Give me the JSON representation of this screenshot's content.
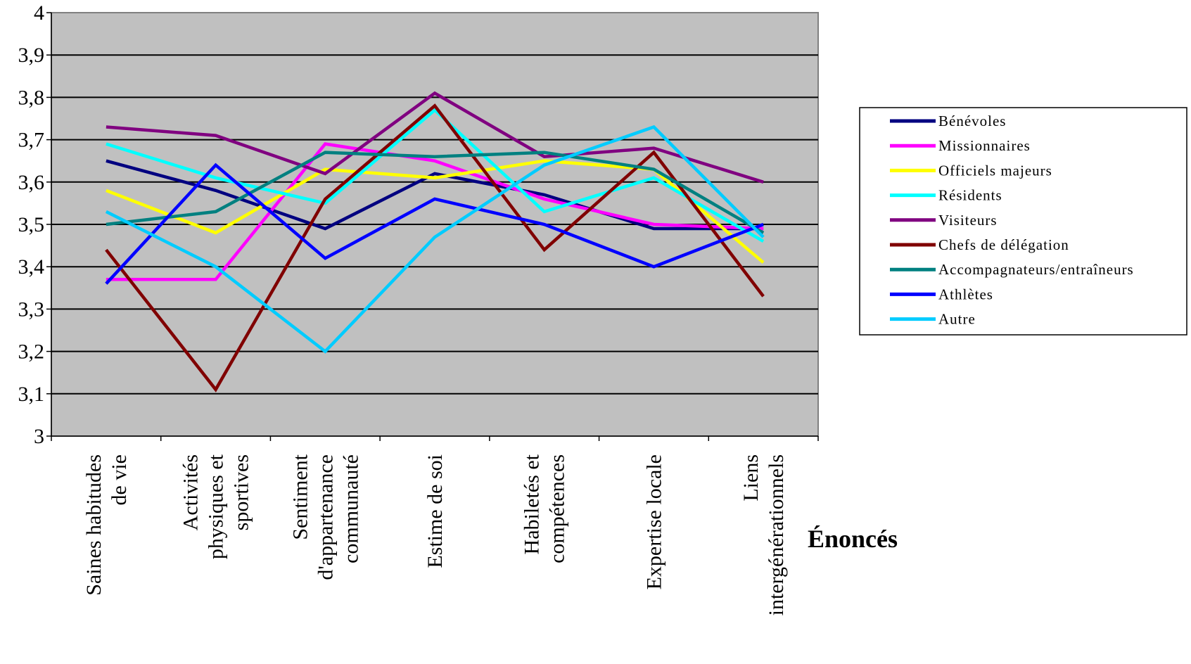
{
  "chart_data": {
    "type": "line",
    "title": "",
    "xlabel": "Énoncés",
    "ylabel": "",
    "ylim": [
      3,
      4
    ],
    "yticks": [
      "3",
      "3,1",
      "3,2",
      "3,3",
      "3,4",
      "3,5",
      "3,6",
      "3,7",
      "3,8",
      "3,9",
      "4"
    ],
    "grid": true,
    "plot_background": "#c0c0c0",
    "legend_position": "right",
    "categories": [
      [
        "Saines habitudes",
        "de vie"
      ],
      [
        "Activités",
        "physiques et",
        "sportives"
      ],
      [
        "Sentiment",
        "d'appartenance",
        "communauté"
      ],
      [
        "Estime de soi"
      ],
      [
        "Habiletés et",
        "compétences"
      ],
      [
        "Expertise locale"
      ],
      [
        "Liens",
        "intergénérationnels"
      ]
    ],
    "series": [
      {
        "name": "Bénévoles",
        "color": "#000080",
        "values": [
          3.65,
          3.58,
          3.49,
          3.62,
          3.57,
          3.49,
          3.49
        ]
      },
      {
        "name": "Missionnaires",
        "color": "#ff00ff",
        "values": [
          3.37,
          3.37,
          3.69,
          3.65,
          3.56,
          3.5,
          3.49
        ]
      },
      {
        "name": "Officiels majeurs",
        "color": "#ffff00",
        "values": [
          3.58,
          3.48,
          3.63,
          3.61,
          3.65,
          3.63,
          3.41
        ]
      },
      {
        "name": "Résidents",
        "color": "#00ffff",
        "values": [
          3.69,
          3.61,
          3.55,
          3.77,
          3.53,
          3.61,
          3.46
        ]
      },
      {
        "name": "Visiteurs",
        "color": "#800080",
        "values": [
          3.73,
          3.71,
          3.62,
          3.81,
          3.66,
          3.68,
          3.6
        ]
      },
      {
        "name": "Chefs de délégation",
        "color": "#800000",
        "values": [
          3.44,
          3.11,
          3.56,
          3.78,
          3.44,
          3.67,
          3.33
        ]
      },
      {
        "name": "Accompagnateurs/entraîneurs",
        "color": "#008080",
        "values": [
          3.5,
          3.53,
          3.67,
          3.66,
          3.67,
          3.63,
          3.48
        ]
      },
      {
        "name": "Athlètes",
        "color": "#0000ff",
        "values": [
          3.36,
          3.64,
          3.42,
          3.56,
          3.5,
          3.4,
          3.5
        ]
      },
      {
        "name": "Autre",
        "color": "#00ccff",
        "values": [
          3.53,
          3.4,
          3.2,
          3.47,
          3.64,
          3.73,
          3.47
        ]
      }
    ]
  }
}
